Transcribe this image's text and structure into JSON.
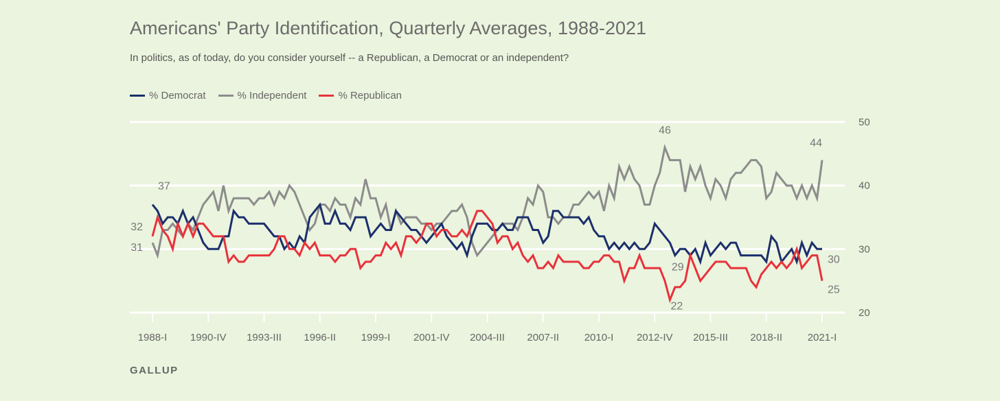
{
  "chart_data": {
    "type": "line",
    "title": "Americans' Party Identification, Quarterly Averages, 1988-2021",
    "subtitle": "In politics, as of today, do you consider yourself -- a Republican, a Democrat or an independent?",
    "xlabel": "",
    "ylabel": "",
    "ylim": [
      20,
      50
    ],
    "yticks": [
      50,
      40,
      30,
      20
    ],
    "grid": true,
    "legend_placement": "top-left",
    "x_start": "1988-I",
    "x_tick_labels": [
      {
        "index": 0,
        "label": "1988-I"
      },
      {
        "index": 11,
        "label": "1990-IV"
      },
      {
        "index": 22,
        "label": "1993-III"
      },
      {
        "index": 33,
        "label": "1996-II"
      },
      {
        "index": 44,
        "label": "1999-I"
      },
      {
        "index": 55,
        "label": "2001-IV"
      },
      {
        "index": 66,
        "label": "2004-III"
      },
      {
        "index": 77,
        "label": "2007-II"
      },
      {
        "index": 88,
        "label": "2010-I"
      },
      {
        "index": 99,
        "label": "2012-IV"
      },
      {
        "index": 110,
        "label": "2015-III"
      },
      {
        "index": 121,
        "label": "2018-II"
      },
      {
        "index": 132,
        "label": "2021-I"
      }
    ],
    "series": [
      {
        "name": "% Democrat",
        "color": "#1b2f6b",
        "values": [
          37,
          36,
          34,
          35,
          35,
          34,
          36,
          34,
          35,
          33,
          31,
          30,
          30,
          30,
          32,
          32,
          36,
          35,
          35,
          34,
          34,
          34,
          34,
          33,
          32,
          32,
          30,
          31,
          30,
          32,
          31,
          35,
          36,
          37,
          34,
          34,
          36,
          34,
          34,
          33,
          35,
          35,
          35,
          32,
          33,
          34,
          33,
          33,
          36,
          35,
          34,
          33,
          33,
          32,
          31,
          32,
          33,
          34,
          32,
          31,
          30,
          31,
          29,
          32,
          34,
          34,
          34,
          33,
          33,
          34,
          33,
          33,
          35,
          35,
          35,
          33,
          33,
          31,
          32,
          36,
          36,
          35,
          35,
          35,
          35,
          34,
          35,
          33,
          32,
          32,
          30,
          31,
          30,
          31,
          30,
          31,
          30,
          30,
          31,
          34,
          33,
          32,
          31,
          29,
          30,
          30,
          29,
          30,
          28,
          31,
          29,
          30,
          31,
          30,
          31,
          31,
          29,
          29,
          29,
          29,
          29,
          28,
          32,
          31,
          28,
          29,
          30,
          28,
          31,
          29,
          31,
          30,
          30
        ]
      },
      {
        "name": "% Independent",
        "color": "#8c8c8c",
        "values": [
          31,
          29,
          33,
          33,
          34,
          33,
          32,
          34,
          33,
          35,
          37,
          38,
          39,
          36,
          40,
          36,
          38,
          38,
          38,
          38,
          37,
          38,
          38,
          39,
          37,
          39,
          38,
          40,
          39,
          37,
          35,
          33,
          34,
          37,
          37,
          36,
          38,
          37,
          37,
          35,
          38,
          37,
          41,
          38,
          38,
          35,
          37,
          33,
          36,
          34,
          35,
          35,
          35,
          34,
          34,
          33,
          34,
          34,
          35,
          36,
          36,
          37,
          35,
          31,
          29,
          30,
          31,
          32,
          33,
          34,
          34,
          34,
          33,
          35,
          38,
          37,
          40,
          39,
          35,
          35,
          34,
          35,
          35,
          37,
          37,
          38,
          39,
          38,
          39,
          36,
          40,
          38,
          43,
          41,
          43,
          41,
          40,
          37,
          37,
          40,
          42,
          46,
          44,
          44,
          44,
          39,
          43,
          41,
          43,
          40,
          38,
          41,
          40,
          38,
          41,
          42,
          42,
          43,
          44,
          44,
          43,
          38,
          39,
          42,
          41,
          40,
          40,
          38,
          40,
          38,
          40,
          38,
          44
        ]
      },
      {
        "name": "% Republican",
        "color": "#e8323c",
        "values": [
          32,
          35,
          33,
          32,
          30,
          34,
          32,
          34,
          32,
          34,
          34,
          33,
          32,
          32,
          32,
          28,
          29,
          28,
          28,
          29,
          29,
          29,
          29,
          29,
          30,
          32,
          32,
          30,
          30,
          29,
          31,
          30,
          31,
          29,
          29,
          29,
          28,
          29,
          29,
          30,
          30,
          27,
          28,
          28,
          29,
          29,
          31,
          30,
          31,
          29,
          32,
          32,
          31,
          32,
          34,
          34,
          32,
          33,
          33,
          32,
          32,
          33,
          32,
          34,
          36,
          36,
          35,
          34,
          31,
          32,
          32,
          30,
          31,
          29,
          28,
          29,
          27,
          27,
          28,
          27,
          29,
          28,
          28,
          28,
          28,
          27,
          27,
          28,
          28,
          29,
          29,
          28,
          28,
          25,
          27,
          27,
          29,
          27,
          27,
          27,
          27,
          25,
          22,
          24,
          24,
          25,
          29,
          27,
          25,
          26,
          27,
          28,
          28,
          28,
          27,
          27,
          27,
          27,
          25,
          24,
          26,
          27,
          28,
          27,
          28,
          27,
          28,
          30,
          27,
          28,
          29,
          29,
          25
        ]
      }
    ],
    "annotations": [
      {
        "series": 0,
        "index": 0,
        "label": "37"
      },
      {
        "series": 2,
        "index": 0,
        "label": "32"
      },
      {
        "series": 1,
        "index": 0,
        "label": "31"
      },
      {
        "series": 1,
        "index": 101,
        "label": "46"
      },
      {
        "series": 0,
        "index": 103,
        "label": "29"
      },
      {
        "series": 2,
        "index": 102,
        "label": "22"
      },
      {
        "series": 1,
        "index": 132,
        "label": "44"
      },
      {
        "series": 0,
        "index": 132,
        "label": "30"
      },
      {
        "series": 2,
        "index": 132,
        "label": "25"
      }
    ]
  },
  "source": "GALLUP"
}
